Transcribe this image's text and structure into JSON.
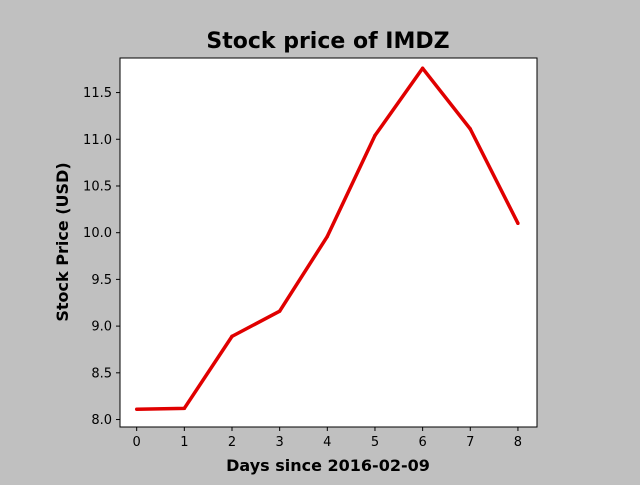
{
  "chart_data": {
    "type": "line",
    "title": "Stock price of IMDZ",
    "xlabel": "Days since 2016-02-09",
    "ylabel": "Stock Price (USD)",
    "x": [
      0,
      1,
      2,
      3,
      4,
      5,
      6,
      7,
      8
    ],
    "series": [
      {
        "values": [
          8.11,
          8.12,
          8.89,
          9.16,
          9.96,
          11.04,
          11.76,
          11.11,
          10.1
        ],
        "color": "#e00000"
      }
    ],
    "xlim": [
      -0.35,
      8.4
    ],
    "ylim": [
      7.92,
      11.87
    ],
    "xticks": [
      "0",
      "1",
      "2",
      "3",
      "4",
      "5",
      "6",
      "7",
      "8"
    ],
    "yticks": [
      "8.0",
      "8.5",
      "9.0",
      "9.5",
      "10.0",
      "10.5",
      "11.0",
      "11.5"
    ],
    "grid": false,
    "legend": "none",
    "background_color": "#c0c0c0",
    "plot_background_color": "#ffffff"
  }
}
